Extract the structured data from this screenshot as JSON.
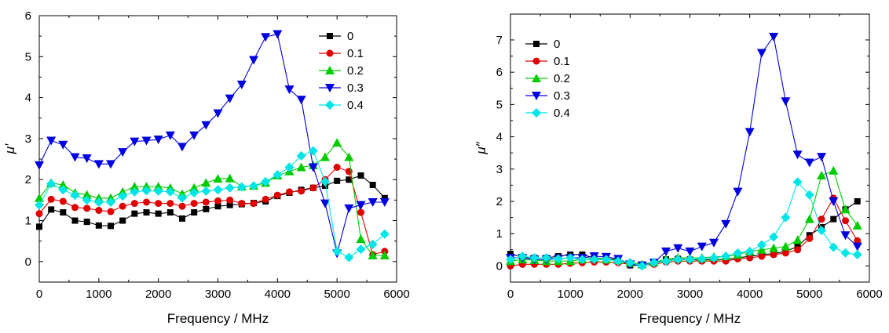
{
  "chart_data": [
    {
      "type": "line",
      "xlabel": "Frequency / MHz",
      "ylabel": "μ′",
      "xlim": [
        0,
        6000
      ],
      "ylim": [
        -0.5,
        6
      ],
      "xticks": [
        0,
        1000,
        2000,
        3000,
        4000,
        5000,
        6000
      ],
      "yticks": [
        0,
        1,
        2,
        3,
        4,
        5,
        6
      ],
      "legend_position": "top-right",
      "grid": false,
      "series": [
        {
          "name": "0",
          "color": "#000000",
          "marker": "square",
          "x": [
            0,
            200,
            400,
            600,
            800,
            1000,
            1200,
            1400,
            1600,
            1800,
            2000,
            2200,
            2400,
            2600,
            2800,
            3000,
            3200,
            3400,
            3600,
            3800,
            4000,
            4200,
            4400,
            4600,
            4800,
            5000,
            5200,
            5400,
            5600,
            5800
          ],
          "y": [
            0.85,
            1.27,
            1.2,
            1.0,
            0.97,
            0.88,
            0.87,
            1.0,
            1.17,
            1.2,
            1.17,
            1.2,
            1.05,
            1.2,
            1.28,
            1.35,
            1.38,
            1.4,
            1.43,
            1.47,
            1.6,
            1.68,
            1.75,
            1.8,
            1.85,
            1.97,
            2.0,
            2.1,
            1.87,
            1.55
          ]
        },
        {
          "name": "0.1",
          "color": "#e00000",
          "marker": "circle",
          "x": [
            0,
            200,
            400,
            600,
            800,
            1000,
            1200,
            1400,
            1600,
            1800,
            2000,
            2200,
            2400,
            2600,
            2800,
            3000,
            3200,
            3400,
            3600,
            3800,
            4000,
            4200,
            4400,
            4600,
            4800,
            5000,
            5200,
            5400,
            5600,
            5800
          ],
          "y": [
            1.17,
            1.52,
            1.47,
            1.32,
            1.3,
            1.25,
            1.22,
            1.35,
            1.42,
            1.45,
            1.42,
            1.42,
            1.35,
            1.42,
            1.45,
            1.48,
            1.5,
            1.42,
            1.42,
            1.52,
            1.62,
            1.7,
            1.72,
            1.8,
            2.0,
            2.3,
            2.2,
            1.2,
            0.17,
            0.25
          ]
        },
        {
          "name": "0.2",
          "color": "#00cc00",
          "marker": "triangle-up",
          "x": [
            0,
            200,
            400,
            600,
            800,
            1000,
            1200,
            1400,
            1600,
            1800,
            2000,
            2200,
            2400,
            2600,
            2800,
            3000,
            3200,
            3400,
            3600,
            3800,
            4000,
            4200,
            4400,
            4600,
            4800,
            5000,
            5200,
            5400,
            5600,
            5800
          ],
          "y": [
            1.55,
            1.92,
            1.87,
            1.68,
            1.63,
            1.55,
            1.55,
            1.7,
            1.83,
            1.83,
            1.83,
            1.8,
            1.65,
            1.8,
            1.92,
            2.02,
            2.03,
            1.83,
            1.85,
            1.92,
            2.1,
            2.2,
            2.3,
            2.35,
            2.55,
            2.9,
            2.55,
            0.55,
            0.15,
            0.15
          ]
        },
        {
          "name": "0.3",
          "color": "#0000e0",
          "marker": "triangle-down",
          "x": [
            0,
            200,
            400,
            600,
            800,
            1000,
            1200,
            1400,
            1600,
            1800,
            2000,
            2200,
            2400,
            2600,
            2800,
            3000,
            3200,
            3400,
            3600,
            3800,
            4000,
            4200,
            4400,
            4600,
            4800,
            5000,
            5200,
            5400,
            5600,
            5800
          ],
          "y": [
            2.35,
            2.95,
            2.85,
            2.55,
            2.52,
            2.38,
            2.38,
            2.67,
            2.93,
            2.95,
            2.98,
            3.08,
            2.8,
            3.08,
            3.33,
            3.62,
            3.98,
            4.32,
            4.92,
            5.48,
            5.55,
            4.2,
            3.95,
            2.3,
            1.42,
            0.2,
            1.3,
            1.38,
            1.45,
            1.45
          ]
        },
        {
          "name": "0.4",
          "color": "#00e5e5",
          "marker": "diamond",
          "x": [
            0,
            200,
            400,
            600,
            800,
            1000,
            1200,
            1400,
            1600,
            1800,
            2000,
            2200,
            2400,
            2600,
            2800,
            3000,
            3200,
            3400,
            3600,
            3800,
            4000,
            4200,
            4400,
            4600,
            4800,
            5000,
            5200,
            5400,
            5600,
            5800
          ],
          "y": [
            1.38,
            1.9,
            1.75,
            1.62,
            1.5,
            1.45,
            1.45,
            1.6,
            1.7,
            1.73,
            1.72,
            1.7,
            1.55,
            1.68,
            1.72,
            1.75,
            1.8,
            1.82,
            1.85,
            1.95,
            2.12,
            2.3,
            2.58,
            2.7,
            1.95,
            0.25,
            0.1,
            0.3,
            0.42,
            0.67
          ]
        }
      ]
    },
    {
      "type": "line",
      "xlabel": "Frequency / MHz",
      "ylabel": "μ″",
      "xlim": [
        0,
        6000
      ],
      "ylim": [
        -0.5,
        7.8
      ],
      "xticks": [
        0,
        1000,
        2000,
        3000,
        4000,
        5000,
        6000
      ],
      "yticks": [
        0,
        1,
        2,
        3,
        4,
        5,
        6,
        7
      ],
      "legend_position": "top-left",
      "grid": false,
      "series": [
        {
          "name": "0",
          "color": "#000000",
          "marker": "square",
          "x": [
            0,
            200,
            400,
            600,
            800,
            1000,
            1200,
            1400,
            1600,
            1800,
            2000,
            2200,
            2400,
            2600,
            2800,
            3000,
            3200,
            3400,
            3600,
            3800,
            4000,
            4200,
            4400,
            4600,
            4800,
            5000,
            5200,
            5400,
            5600,
            5800
          ],
          "y": [
            0.37,
            0.27,
            0.25,
            0.25,
            0.3,
            0.35,
            0.35,
            0.25,
            0.22,
            0.2,
            0.02,
            0.02,
            0.08,
            0.2,
            0.22,
            0.2,
            0.18,
            0.2,
            0.2,
            0.25,
            0.3,
            0.35,
            0.38,
            0.45,
            0.6,
            0.95,
            1.2,
            1.45,
            1.75,
            2.0
          ]
        },
        {
          "name": "0.1",
          "color": "#e00000",
          "marker": "circle",
          "x": [
            0,
            200,
            400,
            600,
            800,
            1000,
            1200,
            1400,
            1600,
            1800,
            2000,
            2200,
            2400,
            2600,
            2800,
            3000,
            3200,
            3400,
            3600,
            3800,
            4000,
            4200,
            4400,
            4600,
            4800,
            5000,
            5200,
            5400,
            5600,
            5800
          ],
          "y": [
            0.0,
            0.05,
            0.05,
            0.05,
            0.05,
            0.08,
            0.1,
            0.12,
            0.12,
            0.1,
            0.05,
            0.02,
            0.05,
            0.12,
            0.15,
            0.15,
            0.15,
            0.15,
            0.15,
            0.22,
            0.25,
            0.3,
            0.35,
            0.4,
            0.5,
            0.85,
            1.45,
            2.1,
            1.4,
            0.78
          ]
        },
        {
          "name": "0.2",
          "color": "#00cc00",
          "marker": "triangle-up",
          "x": [
            0,
            200,
            400,
            600,
            800,
            1000,
            1200,
            1400,
            1600,
            1800,
            2000,
            2200,
            2400,
            2600,
            2800,
            3000,
            3200,
            3400,
            3600,
            3800,
            4000,
            4200,
            4400,
            4600,
            4800,
            5000,
            5200,
            5400,
            5600,
            5800
          ],
          "y": [
            0.15,
            0.2,
            0.18,
            0.15,
            0.15,
            0.15,
            0.2,
            0.25,
            0.2,
            0.18,
            0.1,
            0.05,
            0.12,
            0.2,
            0.25,
            0.25,
            0.25,
            0.28,
            0.3,
            0.35,
            0.45,
            0.5,
            0.55,
            0.6,
            0.8,
            1.45,
            2.8,
            2.95,
            1.75,
            1.25
          ]
        },
        {
          "name": "0.3",
          "color": "#0000e0",
          "marker": "triangle-down",
          "x": [
            0,
            200,
            400,
            600,
            800,
            1000,
            1200,
            1400,
            1600,
            1800,
            2000,
            2200,
            2400,
            2600,
            2800,
            3000,
            3200,
            3400,
            3600,
            3800,
            4000,
            4200,
            4400,
            4600,
            4800,
            5000,
            5200,
            5400,
            5600,
            5800
          ],
          "y": [
            0.25,
            0.25,
            0.2,
            0.2,
            0.22,
            0.25,
            0.25,
            0.3,
            0.28,
            0.22,
            0.05,
            0.02,
            0.1,
            0.45,
            0.55,
            0.45,
            0.6,
            0.72,
            1.3,
            2.3,
            4.15,
            6.6,
            7.1,
            5.1,
            3.45,
            3.2,
            3.38,
            2.0,
            0.95,
            0.6
          ]
        },
        {
          "name": "0.4",
          "color": "#00e5e5",
          "marker": "diamond",
          "x": [
            0,
            200,
            400,
            600,
            800,
            1000,
            1200,
            1400,
            1600,
            1800,
            2000,
            2200,
            2400,
            2600,
            2800,
            3000,
            3200,
            3400,
            3600,
            3800,
            4000,
            4200,
            4400,
            4600,
            4800,
            5000,
            5200,
            5400,
            5600,
            5800
          ],
          "y": [
            0.2,
            0.3,
            0.25,
            0.25,
            0.22,
            0.25,
            0.2,
            0.2,
            0.2,
            0.15,
            0.1,
            0.0,
            0.1,
            0.15,
            0.2,
            0.2,
            0.22,
            0.25,
            0.3,
            0.4,
            0.45,
            0.65,
            0.9,
            1.5,
            2.6,
            2.2,
            1.1,
            0.58,
            0.4,
            0.35
          ]
        }
      ]
    }
  ]
}
